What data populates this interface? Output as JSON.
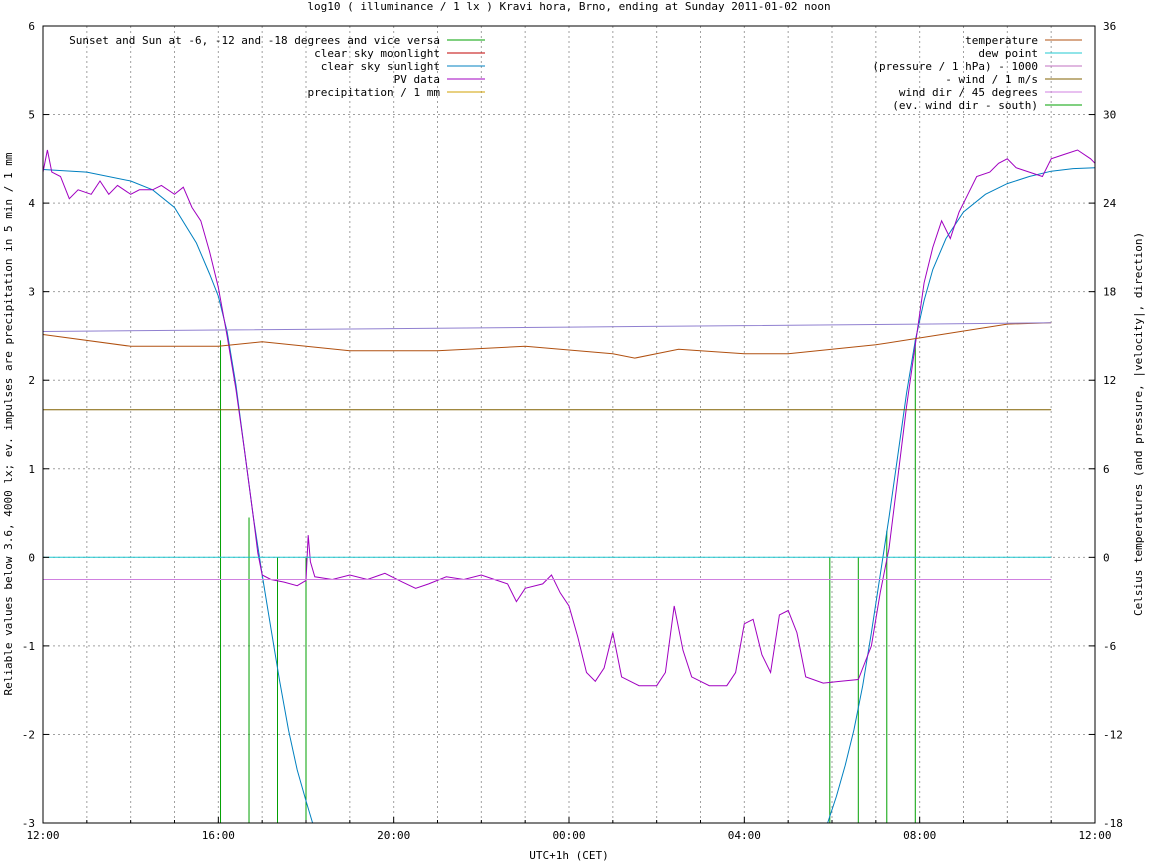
{
  "chart_data": {
    "type": "line",
    "title": "log10 ( illuminance / 1 lx ) Kravi hora, Brno, ending at Sunday 2011-01-02 noon",
    "xlabel": "UTC+1h (CET)",
    "ylabel_left": "Reliable values below 3.6, 4000 lx; ev. impulses are precipitation in 5 min / 1 mm",
    "ylabel_right": "Celsius temperatures (and pressure, |velocity|, direction)",
    "grid": true,
    "x_range_hours": [
      0,
      24
    ],
    "x_ticks": [
      {
        "h": 0,
        "label": "12:00"
      },
      {
        "h": 4,
        "label": "16:00"
      },
      {
        "h": 8,
        "label": "20:00"
      },
      {
        "h": 12,
        "label": "00:00"
      },
      {
        "h": 16,
        "label": "04:00"
      },
      {
        "h": 20,
        "label": "08:00"
      },
      {
        "h": 24,
        "label": "12:00"
      }
    ],
    "y_left_range": [
      -3,
      6
    ],
    "y_left_ticks": [
      "-3",
      "-2",
      "-1",
      "0",
      "1",
      "2",
      "3",
      "4",
      "5",
      "6"
    ],
    "y_right_range": [
      -18,
      36
    ],
    "y_right_ticks": [
      "-18",
      "-12",
      "-6",
      "0",
      "6",
      "12",
      "18",
      "24",
      "30",
      "36"
    ],
    "legend_left_position": "top-left",
    "legend_right_position": "top-right",
    "legend_left": [
      {
        "label": "Sunset and Sun at -6, -12 and -18 degrees and vice versa",
        "color": "#00a000"
      },
      {
        "label": "clear sky moonlight",
        "color": "#c00000"
      },
      {
        "label": "clear sky sunlight",
        "color": "#0080c0"
      },
      {
        "label": "PV data",
        "color": "#a000c0"
      },
      {
        "label": "precipitation / 1 mm",
        "color": "#d0a000"
      }
    ],
    "legend_right": [
      {
        "label": "temperature",
        "color": "#b05010"
      },
      {
        "label": "dew point",
        "color": "#20c8d0"
      },
      {
        "label": "(pressure / 1 hPa) - 1000",
        "color": "#c070c0"
      },
      {
        "label": "- wind / 1 m/s",
        "color": "#806000"
      },
      {
        "label": "wind dir / 45 degrees",
        "color": "#d080e0"
      },
      {
        "label": "(ev. wind dir - south)",
        "color": "#00a000"
      }
    ],
    "sun_event_impulses": [
      {
        "h": 4.05,
        "top": 2.45
      },
      {
        "h": 4.7,
        "top": 0.45
      },
      {
        "h": 5.35,
        "top": 0
      },
      {
        "h": 6.0,
        "top": 0
      },
      {
        "h": 17.95,
        "top": 0
      },
      {
        "h": 18.6,
        "top": 0
      },
      {
        "h": 19.25,
        "top": 0.3
      },
      {
        "h": 19.9,
        "top": 2.45
      }
    ],
    "series": [
      {
        "name": "clear sky sunlight",
        "color": "#0080c0",
        "points": [
          [
            0,
            4.38
          ],
          [
            1,
            4.35
          ],
          [
            2,
            4.25
          ],
          [
            2.5,
            4.15
          ],
          [
            3,
            3.95
          ],
          [
            3.5,
            3.55
          ],
          [
            3.8,
            3.2
          ],
          [
            4,
            2.95
          ],
          [
            4.2,
            2.55
          ],
          [
            4.4,
            1.95
          ],
          [
            4.6,
            1.2
          ],
          [
            4.8,
            0.45
          ],
          [
            5,
            -0.2
          ],
          [
            5.2,
            -0.8
          ],
          [
            5.4,
            -1.4
          ],
          [
            5.6,
            -1.95
          ],
          [
            5.8,
            -2.4
          ],
          [
            6,
            -2.75
          ],
          [
            6.15,
            -3.0
          ]
        ]
      },
      {
        "name": "clear sky sunlight",
        "color": "#0080c0",
        "points": [
          [
            17.9,
            -3.0
          ],
          [
            18.1,
            -2.7
          ],
          [
            18.3,
            -2.35
          ],
          [
            18.5,
            -1.95
          ],
          [
            18.7,
            -1.45
          ],
          [
            18.9,
            -0.85
          ],
          [
            19.1,
            -0.2
          ],
          [
            19.3,
            0.45
          ],
          [
            19.5,
            1.15
          ],
          [
            19.7,
            1.85
          ],
          [
            19.9,
            2.45
          ],
          [
            20.1,
            2.9
          ],
          [
            20.3,
            3.25
          ],
          [
            20.6,
            3.6
          ],
          [
            21,
            3.9
          ],
          [
            21.5,
            4.1
          ],
          [
            22,
            4.22
          ],
          [
            22.5,
            4.3
          ],
          [
            23,
            4.36
          ],
          [
            23.5,
            4.39
          ],
          [
            24,
            4.4
          ]
        ]
      },
      {
        "name": "PV data",
        "color": "#a000c0",
        "points": [
          [
            0,
            4.35
          ],
          [
            0.1,
            4.6
          ],
          [
            0.2,
            4.35
          ],
          [
            0.4,
            4.3
          ],
          [
            0.6,
            4.05
          ],
          [
            0.8,
            4.15
          ],
          [
            1.1,
            4.1
          ],
          [
            1.3,
            4.25
          ],
          [
            1.5,
            4.1
          ],
          [
            1.7,
            4.2
          ],
          [
            2,
            4.1
          ],
          [
            2.2,
            4.15
          ],
          [
            2.5,
            4.15
          ],
          [
            2.7,
            4.2
          ],
          [
            3,
            4.1
          ],
          [
            3.2,
            4.18
          ],
          [
            3.4,
            3.95
          ],
          [
            3.6,
            3.8
          ],
          [
            3.8,
            3.45
          ],
          [
            4,
            3.05
          ],
          [
            4.2,
            2.5
          ],
          [
            4.4,
            1.9
          ],
          [
            4.6,
            1.2
          ],
          [
            4.8,
            0.45
          ],
          [
            4.9,
            0.05
          ],
          [
            5.0,
            -0.2
          ],
          [
            5.2,
            -0.25
          ],
          [
            5.5,
            -0.28
          ],
          [
            5.8,
            -0.32
          ],
          [
            6.0,
            -0.26
          ],
          [
            6.05,
            0.25
          ],
          [
            6.1,
            -0.05
          ],
          [
            6.2,
            -0.22
          ],
          [
            6.6,
            -0.25
          ],
          [
            7,
            -0.2
          ],
          [
            7.4,
            -0.25
          ],
          [
            7.8,
            -0.18
          ],
          [
            8.2,
            -0.28
          ],
          [
            8.5,
            -0.35
          ],
          [
            8.8,
            -0.3
          ],
          [
            9.2,
            -0.22
          ],
          [
            9.6,
            -0.25
          ],
          [
            10,
            -0.2
          ],
          [
            10.3,
            -0.25
          ],
          [
            10.6,
            -0.3
          ],
          [
            10.8,
            -0.5
          ],
          [
            11,
            -0.35
          ],
          [
            11.4,
            -0.3
          ],
          [
            11.6,
            -0.2
          ],
          [
            11.8,
            -0.4
          ],
          [
            12,
            -0.55
          ],
          [
            12.2,
            -0.9
          ],
          [
            12.4,
            -1.3
          ],
          [
            12.6,
            -1.4
          ],
          [
            12.8,
            -1.25
          ],
          [
            13,
            -0.85
          ],
          [
            13.2,
            -1.35
          ],
          [
            13.6,
            -1.45
          ],
          [
            14,
            -1.45
          ],
          [
            14.2,
            -1.3
          ],
          [
            14.4,
            -0.55
          ],
          [
            14.6,
            -1.05
          ],
          [
            14.8,
            -1.35
          ],
          [
            15.2,
            -1.45
          ],
          [
            15.6,
            -1.45
          ],
          [
            15.8,
            -1.3
          ],
          [
            16,
            -0.75
          ],
          [
            16.2,
            -0.7
          ],
          [
            16.4,
            -1.1
          ],
          [
            16.6,
            -1.3
          ],
          [
            16.8,
            -0.65
          ],
          [
            17,
            -0.6
          ],
          [
            17.2,
            -0.85
          ],
          [
            17.4,
            -1.35
          ],
          [
            17.8,
            -1.42
          ],
          [
            18.2,
            -1.4
          ],
          [
            18.6,
            -1.38
          ],
          [
            18.9,
            -1.0
          ],
          [
            19.1,
            -0.4
          ],
          [
            19.3,
            0.1
          ],
          [
            19.5,
            0.9
          ],
          [
            19.7,
            1.7
          ],
          [
            19.9,
            2.4
          ],
          [
            20.1,
            3.1
          ],
          [
            20.3,
            3.5
          ],
          [
            20.5,
            3.8
          ],
          [
            20.7,
            3.6
          ],
          [
            20.9,
            3.9
          ],
          [
            21.1,
            4.1
          ],
          [
            21.3,
            4.3
          ],
          [
            21.6,
            4.35
          ],
          [
            21.8,
            4.45
          ],
          [
            22,
            4.5
          ],
          [
            22.2,
            4.4
          ],
          [
            22.5,
            4.35
          ],
          [
            22.8,
            4.3
          ],
          [
            23,
            4.5
          ],
          [
            23.3,
            4.55
          ],
          [
            23.6,
            4.6
          ],
          [
            23.9,
            4.5
          ],
          [
            24,
            4.45
          ]
        ]
      },
      {
        "name": "temperature",
        "axis": "right",
        "color": "#b05010",
        "points": [
          [
            0,
            15.1
          ],
          [
            2,
            14.3
          ],
          [
            4,
            14.3
          ],
          [
            5,
            14.6
          ],
          [
            7,
            14.0
          ],
          [
            9,
            14.0
          ],
          [
            11,
            14.3
          ],
          [
            13,
            13.8
          ],
          [
            13.5,
            13.5
          ],
          [
            14.5,
            14.1
          ],
          [
            16,
            13.8
          ],
          [
            17,
            13.8
          ],
          [
            19,
            14.4
          ],
          [
            20.5,
            15.1
          ],
          [
            22,
            15.8
          ],
          [
            23,
            15.9
          ]
        ]
      },
      {
        "name": "(pressure / 1 hPa) - 1000",
        "axis": "right",
        "color": "#9080d0",
        "points": [
          [
            0,
            15.3
          ],
          [
            4,
            15.4
          ],
          [
            8,
            15.5
          ],
          [
            12,
            15.6
          ],
          [
            16,
            15.7
          ],
          [
            20,
            15.8
          ],
          [
            23,
            15.9
          ]
        ]
      },
      {
        "name": "- wind / 1 m/s",
        "axis": "right",
        "color": "#806000",
        "points": [
          [
            0,
            10.0
          ],
          [
            23,
            10.0
          ]
        ]
      },
      {
        "name": "dew point",
        "axis": "right",
        "color": "#20c8d0",
        "points": [
          [
            0,
            0
          ],
          [
            23,
            0
          ]
        ]
      },
      {
        "name": "wind dir / 45 degrees",
        "axis": "right",
        "color": "#d080e0",
        "points": [
          [
            0,
            -1.5
          ],
          [
            23,
            -1.5
          ]
        ]
      }
    ]
  }
}
